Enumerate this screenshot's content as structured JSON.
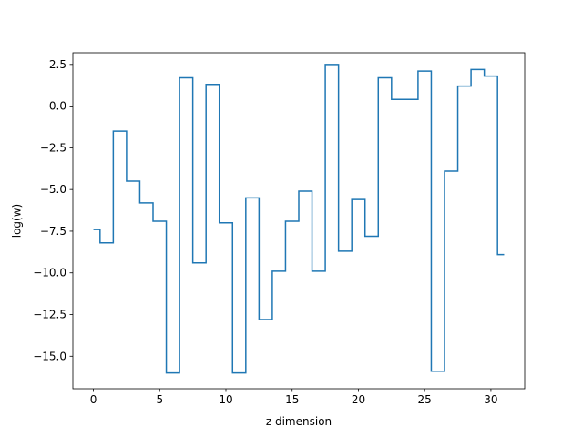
{
  "chart_data": {
    "type": "line",
    "drawstyle": "steps-mid",
    "title": "",
    "xlabel": "z dimension",
    "ylabel": "log(w)",
    "xlim": [
      -1.55,
      32.55
    ],
    "ylim": [
      -16.95,
      3.2
    ],
    "xticks": [
      0,
      5,
      10,
      15,
      20,
      25,
      30
    ],
    "xtick_labels": [
      "0",
      "5",
      "10",
      "15",
      "20",
      "25",
      "30"
    ],
    "yticks": [
      2.5,
      0.0,
      -2.5,
      -5.0,
      -7.5,
      -10.0,
      -12.5,
      -15.0
    ],
    "ytick_labels": [
      "2.5",
      "0.0",
      "−2.5",
      "−5.0",
      "−7.5",
      "−10.0",
      "−12.5",
      "−15.0"
    ],
    "grid": false,
    "legend": false,
    "series": [
      {
        "color": "#1f77b4",
        "x": [
          0,
          1,
          2,
          3,
          4,
          5,
          6,
          7,
          8,
          9,
          10,
          11,
          12,
          13,
          14,
          15,
          16,
          17,
          18,
          19,
          20,
          21,
          22,
          23,
          24,
          25,
          26,
          27,
          28,
          29,
          30,
          31
        ],
        "values": [
          -7.4,
          -8.2,
          -1.5,
          -4.5,
          -5.8,
          -6.9,
          -16.0,
          1.7,
          -9.4,
          1.3,
          -7.0,
          -16.0,
          -5.5,
          -12.8,
          -9.9,
          -6.9,
          -5.1,
          -9.9,
          2.5,
          -8.7,
          -5.6,
          -7.8,
          1.7,
          0.4,
          0.4,
          2.1,
          -15.9,
          -3.9,
          1.2,
          2.2,
          1.8,
          -8.9
        ]
      }
    ]
  }
}
